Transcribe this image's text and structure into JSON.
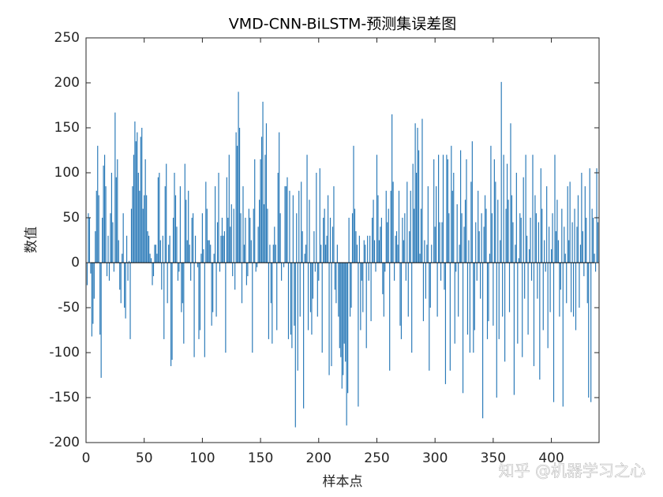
{
  "chart_data": {
    "type": "bar",
    "title": "VMD-CNN-BiLSTM-预测集误差图",
    "xlabel": "样本点",
    "ylabel": "数值",
    "watermark": "知乎 @机器学习之心",
    "color": "#2a7ab8",
    "xlim": [
      0,
      441
    ],
    "xticks": [
      0,
      50,
      100,
      150,
      200,
      250,
      300,
      350,
      400
    ],
    "ylim": [
      -200,
      250
    ],
    "yticks": [
      -200,
      -150,
      -100,
      -50,
      0,
      50,
      100,
      150,
      200,
      250
    ],
    "x": [
      1,
      2,
      3,
      4,
      5,
      6,
      7,
      8,
      9,
      10,
      11,
      12,
      13,
      14,
      15,
      16,
      17,
      18,
      19,
      20,
      21,
      22,
      23,
      24,
      25,
      26,
      27,
      28,
      29,
      30,
      31,
      32,
      33,
      34,
      35,
      36,
      37,
      38,
      39,
      40,
      41,
      42,
      43,
      44,
      45,
      46,
      47,
      48,
      49,
      50,
      51,
      52,
      53,
      54,
      55,
      56,
      57,
      58,
      59,
      60,
      61,
      62,
      63,
      64,
      65,
      66,
      67,
      68,
      69,
      70,
      71,
      72,
      73,
      74,
      75,
      76,
      77,
      78,
      79,
      80,
      81,
      82,
      83,
      84,
      85,
      86,
      87,
      88,
      89,
      90,
      91,
      92,
      93,
      94,
      95,
      96,
      97,
      98,
      99,
      100,
      101,
      102,
      103,
      104,
      105,
      106,
      107,
      108,
      109,
      110,
      111,
      112,
      113,
      114,
      115,
      116,
      117,
      118,
      119,
      120,
      121,
      122,
      123,
      124,
      125,
      126,
      127,
      128,
      129,
      130,
      131,
      132,
      133,
      134,
      135,
      136,
      137,
      138,
      139,
      140,
      141,
      142,
      143,
      144,
      145,
      146,
      147,
      148,
      149,
      150,
      151,
      152,
      153,
      154,
      155,
      156,
      157,
      158,
      159,
      160,
      161,
      162,
      163,
      164,
      165,
      166,
      167,
      168,
      169,
      170,
      171,
      172,
      173,
      174,
      175,
      176,
      177,
      178,
      179,
      180,
      181,
      182,
      183,
      184,
      185,
      186,
      187,
      188,
      189,
      190,
      191,
      192,
      193,
      194,
      195,
      196,
      197,
      198,
      199,
      200,
      201,
      202,
      203,
      204,
      205,
      206,
      207,
      208,
      209,
      210,
      211,
      212,
      213,
      214,
      215,
      216,
      217,
      218,
      219,
      220,
      221,
      222,
      223,
      224,
      225,
      226,
      227,
      228,
      229,
      230,
      231,
      232,
      233,
      234,
      235,
      236,
      237,
      238,
      239,
      240,
      241,
      242,
      243,
      244,
      245,
      246,
      247,
      248,
      249,
      250,
      251,
      252,
      253,
      254,
      255,
      256,
      257,
      258,
      259,
      260,
      261,
      262,
      263,
      264,
      265,
      266,
      267,
      268,
      269,
      270,
      271,
      272,
      273,
      274,
      275,
      276,
      277,
      278,
      279,
      280,
      281,
      282,
      283,
      284,
      285,
      286,
      287,
      288,
      289,
      290,
      291,
      292,
      293,
      294,
      295,
      296,
      297,
      298,
      299,
      300,
      301,
      302,
      303,
      304,
      305,
      306,
      307,
      308,
      309,
      310,
      311,
      312,
      313,
      314,
      315,
      316,
      317,
      318,
      319,
      320,
      321,
      322,
      323,
      324,
      325,
      326,
      327,
      328,
      329,
      330,
      331,
      332,
      333,
      334,
      335,
      336,
      337,
      338,
      339,
      340,
      341,
      342,
      343,
      344,
      345,
      346,
      347,
      348,
      349,
      350,
      351,
      352,
      353,
      354,
      355,
      356,
      357,
      358,
      359,
      360,
      361,
      362,
      363,
      364,
      365,
      366,
      367,
      368,
      369,
      370,
      371,
      372,
      373,
      374,
      375,
      376,
      377,
      378,
      379,
      380,
      381,
      382,
      383,
      384,
      385,
      386,
      387,
      388,
      389,
      390,
      391,
      392,
      393,
      394,
      395,
      396,
      397,
      398,
      399,
      400,
      401,
      402,
      403,
      404,
      405,
      406,
      407,
      408,
      409,
      410,
      411,
      412,
      413,
      414,
      415,
      416,
      417,
      418,
      419,
      420,
      421,
      422,
      423,
      424,
      425,
      426,
      427,
      428,
      429,
      430,
      431,
      432,
      433,
      434,
      435,
      436,
      437,
      438,
      439,
      440
    ],
    "values": [
      -25,
      55,
      50,
      -12,
      -82,
      -68,
      -40,
      35,
      80,
      130,
      75,
      -80,
      -128,
      50,
      108,
      120,
      85,
      -15,
      30,
      -20,
      55,
      100,
      45,
      -10,
      167,
      95,
      115,
      25,
      -30,
      -45,
      10,
      55,
      -50,
      -62,
      30,
      -20,
      2,
      -85,
      60,
      85,
      120,
      157,
      135,
      145,
      100,
      80,
      140,
      150,
      60,
      75,
      115,
      75,
      35,
      30,
      10,
      5,
      -25,
      -15,
      20,
      20,
      10,
      95,
      100,
      25,
      -30,
      30,
      -85,
      85,
      110,
      -45,
      20,
      30,
      -115,
      -108,
      50,
      100,
      75,
      40,
      -20,
      -10,
      85,
      -55,
      -45,
      -90,
      110,
      70,
      25,
      80,
      20,
      -20,
      50,
      55,
      -105,
      30,
      0,
      -5,
      -85,
      -75,
      10,
      55,
      15,
      -105,
      90,
      60,
      25,
      25,
      20,
      -70,
      -55,
      10,
      85,
      -60,
      45,
      100,
      -10,
      30,
      50,
      30,
      35,
      -100,
      95,
      50,
      120,
      40,
      65,
      -15,
      60,
      -30,
      145,
      130,
      190,
      150,
      55,
      -45,
      85,
      20,
      50,
      -25,
      -15,
      60,
      50,
      25,
      -100,
      60,
      115,
      -10,
      -5,
      40,
      70,
      115,
      140,
      179,
      65,
      120,
      155,
      60,
      -85,
      20,
      -45,
      -90,
      20,
      40,
      20,
      -75,
      100,
      145,
      55,
      -20,
      0,
      -5,
      85,
      85,
      95,
      -85,
      80,
      -80,
      -95,
      75,
      -70,
      -183,
      55,
      -120,
      80,
      -60,
      90,
      35,
      -162,
      10,
      20,
      120,
      -75,
      70,
      -55,
      -80,
      -40,
      35,
      -10,
      100,
      -60,
      -20,
      105,
      20,
      -100,
      50,
      60,
      20,
      30,
      75,
      -125,
      50,
      -115,
      40,
      85,
      -30,
      -45,
      20,
      -60,
      -95,
      -105,
      -140,
      -125,
      -90,
      -110,
      -181,
      -145,
      50,
      -60,
      -50,
      55,
      130,
      60,
      35,
      20,
      -160,
      30,
      -75,
      -20,
      -55,
      25,
      20,
      -95,
      30,
      -20,
      30,
      -65,
      50,
      70,
      25,
      -10,
      120,
      75,
      25,
      40,
      50,
      -35,
      -60,
      -10,
      80,
      45,
      60,
      -120,
      80,
      165,
      90,
      -20,
      30,
      35,
      20,
      80,
      -70,
      -85,
      50,
      25,
      55,
      -20,
      90,
      -60,
      35,
      80,
      -100,
      110,
      60,
      155,
      100,
      150,
      125,
      10,
      60,
      160,
      -65,
      25,
      -40,
      20,
      85,
      -120,
      -50,
      20,
      0,
      115,
      40,
      85,
      -60,
      120,
      45,
      -20,
      45,
      120,
      -30,
      -135,
      120,
      115,
      55,
      -120,
      130,
      80,
      100,
      -90,
      -10,
      65,
      -60,
      20,
      125,
      55,
      -145,
      40,
      70,
      115,
      -80,
      25,
      -100,
      90,
      135,
      -100,
      -75,
      45,
      -20,
      80,
      35,
      -40,
      55,
      -173,
      40,
      75,
      60,
      -85,
      -65,
      10,
      130,
      55,
      -70,
      115,
      90,
      -150,
      70,
      -85,
      25,
      201,
      -60,
      120,
      -110,
      60,
      110,
      70,
      -55,
      155,
      75,
      45,
      -147,
      20,
      100,
      -90,
      5,
      55,
      50,
      -105,
      95,
      -40,
      120,
      30,
      -80,
      15,
      50,
      -20,
      120,
      -115,
      75,
      55,
      -40,
      45,
      -130,
      105,
      60,
      -75,
      25,
      -10,
      85,
      -95,
      40,
      -55,
      15,
      55,
      -155,
      120,
      35,
      70,
      25,
      -60,
      -30,
      60,
      -160,
      40,
      10,
      -45,
      85,
      25,
      90,
      -55,
      45,
      -60,
      60,
      -75,
      40,
      75,
      -50,
      20,
      100,
      35,
      -15,
      85,
      50,
      -45,
      -150,
      105,
      -155,
      60,
      50,
      10,
      -10,
      105,
      45
    ]
  }
}
